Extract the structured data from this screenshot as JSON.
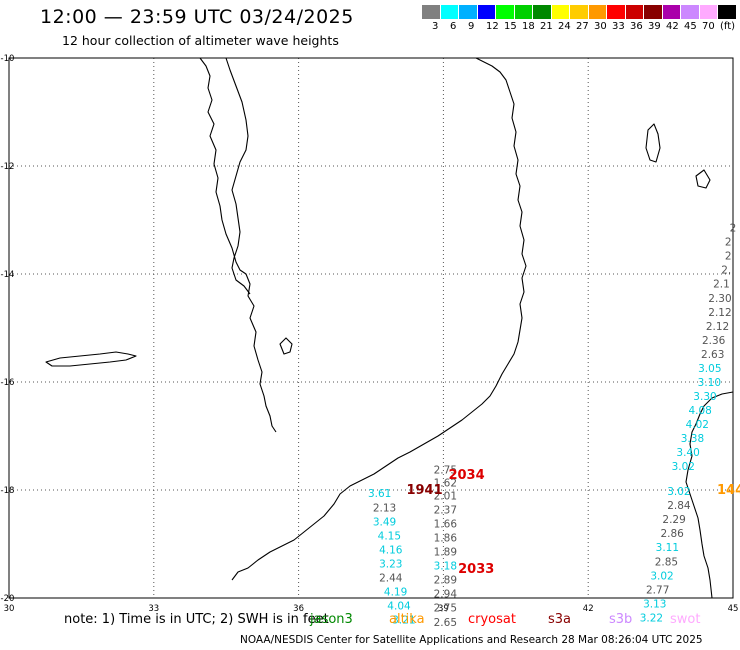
{
  "header": {
    "title": "12:00 — 23:59 UTC 03/24/2025",
    "subtitle": "12 hour collection of altimeter wave heights"
  },
  "legend": {
    "colors": [
      "#808080",
      "#00ffff",
      "#00b0ff",
      "#0000ff",
      "#00ff00",
      "#00d000",
      "#008800",
      "#ffff00",
      "#ffcc00",
      "#ff9900",
      "#ff0000",
      "#cc0000",
      "#880000",
      "#aa00aa",
      "#cc88ff",
      "#ffaaff",
      "#000000"
    ],
    "labels": [
      "3",
      "6",
      "9",
      "12",
      "15",
      "18",
      "21",
      "24",
      "27",
      "30",
      "33",
      "36",
      "39",
      "42",
      "45",
      "70",
      "(ft)"
    ]
  },
  "axes": {
    "lat_labels": [
      "-10",
      "-12",
      "-14",
      "-16",
      "-18",
      "-20"
    ],
    "lon_labels": [
      "30",
      "33",
      "36",
      "39",
      "42",
      "45"
    ]
  },
  "observations": [
    {
      "text": "2.75",
      "lon": 39.04,
      "lat": -17.62,
      "color": "#555555"
    },
    {
      "text": "1.62",
      "lon": 39.04,
      "lat": -17.86,
      "color": "#555555"
    },
    {
      "text": "2.01",
      "lon": 39.04,
      "lat": -18.1,
      "color": "#555555"
    },
    {
      "text": "2.37",
      "lon": 39.04,
      "lat": -18.36,
      "color": "#555555"
    },
    {
      "text": "1.66",
      "lon": 39.04,
      "lat": -18.62,
      "color": "#555555"
    },
    {
      "text": "1.86",
      "lon": 39.04,
      "lat": -18.88,
      "color": "#555555"
    },
    {
      "text": "1.89",
      "lon": 39.04,
      "lat": -19.14,
      "color": "#555555"
    },
    {
      "text": "3.18",
      "lon": 39.04,
      "lat": -19.4,
      "color": "#00ccdd"
    },
    {
      "text": "2.89",
      "lon": 39.04,
      "lat": -19.66,
      "color": "#555555"
    },
    {
      "text": "2.94",
      "lon": 39.04,
      "lat": -19.92,
      "color": "#555555"
    },
    {
      "text": "2.75",
      "lon": 39.04,
      "lat": -20.18,
      "color": "#555555"
    },
    {
      "text": "2.65",
      "lon": 39.04,
      "lat": -20.44,
      "color": "#555555"
    },
    {
      "text": "3.61",
      "lon": 37.68,
      "lat": -18.06,
      "color": "#00ccdd"
    },
    {
      "text": "2.13",
      "lon": 37.78,
      "lat": -18.32,
      "color": "#555555"
    },
    {
      "text": "3.49",
      "lon": 37.78,
      "lat": -18.58,
      "color": "#00ccdd"
    },
    {
      "text": "4.15",
      "lon": 37.88,
      "lat": -18.84,
      "color": "#00ccdd"
    },
    {
      "text": "4.16",
      "lon": 37.91,
      "lat": -19.1,
      "color": "#00ccdd"
    },
    {
      "text": "3.23",
      "lon": 37.91,
      "lat": -19.36,
      "color": "#00ccdd"
    },
    {
      "text": "2.44",
      "lon": 37.91,
      "lat": -19.62,
      "color": "#555555"
    },
    {
      "text": "4.19",
      "lon": 38.01,
      "lat": -19.88,
      "color": "#00ccdd"
    },
    {
      "text": "4.04",
      "lon": 38.08,
      "lat": -20.14,
      "color": "#00ccdd"
    },
    {
      "text": "3.21",
      "lon": 38.18,
      "lat": -20.4,
      "color": "#00ccdd"
    },
    {
      "text": "1941",
      "lon": 38.61,
      "lat": -18.0,
      "color": "#880000"
    },
    {
      "text": "2034",
      "lon": 39.48,
      "lat": -17.72,
      "color": "#dd0000"
    },
    {
      "text": "2033",
      "lon": 39.68,
      "lat": -19.46,
      "color": "#dd0000"
    },
    {
      "text": "2",
      "lon": 45.0,
      "lat": -13.14,
      "color": "#555555"
    },
    {
      "text": "2",
      "lon": 44.9,
      "lat": -13.4,
      "color": "#555555"
    },
    {
      "text": "2",
      "lon": 44.9,
      "lat": -13.66,
      "color": "#555555"
    },
    {
      "text": "2.",
      "lon": 44.86,
      "lat": -13.92,
      "color": "#555555"
    },
    {
      "text": "2.1",
      "lon": 44.76,
      "lat": -14.18,
      "color": "#555555"
    },
    {
      "text": "2.30",
      "lon": 44.73,
      "lat": -14.44,
      "color": "#555555"
    },
    {
      "text": "2.12",
      "lon": 44.73,
      "lat": -14.7,
      "color": "#555555"
    },
    {
      "text": "2.12",
      "lon": 44.68,
      "lat": -14.96,
      "color": "#555555"
    },
    {
      "text": "2.36",
      "lon": 44.6,
      "lat": -15.22,
      "color": "#555555"
    },
    {
      "text": "2.63",
      "lon": 44.58,
      "lat": -15.48,
      "color": "#555555"
    },
    {
      "text": "3.05",
      "lon": 44.52,
      "lat": -15.74,
      "color": "#00ccdd"
    },
    {
      "text": "3.10",
      "lon": 44.51,
      "lat": -16.0,
      "color": "#00ccdd"
    },
    {
      "text": "3.30",
      "lon": 44.42,
      "lat": -16.26,
      "color": "#00ccdd"
    },
    {
      "text": "4.08",
      "lon": 44.32,
      "lat": -16.52,
      "color": "#00ccdd"
    },
    {
      "text": "4.02",
      "lon": 44.26,
      "lat": -16.78,
      "color": "#00ccdd"
    },
    {
      "text": "3.38",
      "lon": 44.16,
      "lat": -17.04,
      "color": "#00ccdd"
    },
    {
      "text": "3.40",
      "lon": 44.07,
      "lat": -17.3,
      "color": "#00ccdd"
    },
    {
      "text": "3.02",
      "lon": 43.97,
      "lat": -17.56,
      "color": "#00ccdd"
    },
    {
      "text": "3.02",
      "lon": 43.88,
      "lat": -18.02,
      "color": "#00ccdd"
    },
    {
      "text": "2.84",
      "lon": 43.88,
      "lat": -18.28,
      "color": "#555555"
    },
    {
      "text": "2.29",
      "lon": 43.78,
      "lat": -18.54,
      "color": "#555555"
    },
    {
      "text": "2.86",
      "lon": 43.74,
      "lat": -18.8,
      "color": "#555555"
    },
    {
      "text": "3.11",
      "lon": 43.64,
      "lat": -19.06,
      "color": "#00ccdd"
    },
    {
      "text": "2.85",
      "lon": 43.62,
      "lat": -19.32,
      "color": "#555555"
    },
    {
      "text": "3.02",
      "lon": 43.53,
      "lat": -19.58,
      "color": "#00ccdd"
    },
    {
      "text": "2.77",
      "lon": 43.44,
      "lat": -19.84,
      "color": "#555555"
    },
    {
      "text": "3.13",
      "lon": 43.38,
      "lat": -20.1,
      "color": "#00ccdd"
    },
    {
      "text": "3.22",
      "lon": 43.31,
      "lat": -20.36,
      "color": "#00ccdd"
    },
    {
      "text": "144",
      "lon": 44.95,
      "lat": -18.0,
      "color": "#ff9900"
    }
  ],
  "note": "note:  1) Time is in UTC; 2) SWH is in feet",
  "satellites": [
    {
      "name": "jason3",
      "color": "#008800"
    },
    {
      "name": "altika",
      "color": "#ff9900"
    },
    {
      "name": "cryosat",
      "color": "#ff0000"
    },
    {
      "name": "s3a",
      "color": "#880000"
    },
    {
      "name": "s3b",
      "color": "#cc88ff"
    },
    {
      "name": "swot",
      "color": "#ffaaff"
    }
  ],
  "footer": "NOAA/NESDIS Center for Satellite Applications and Research    28 Mar 08:26:04 UTC 2025"
}
